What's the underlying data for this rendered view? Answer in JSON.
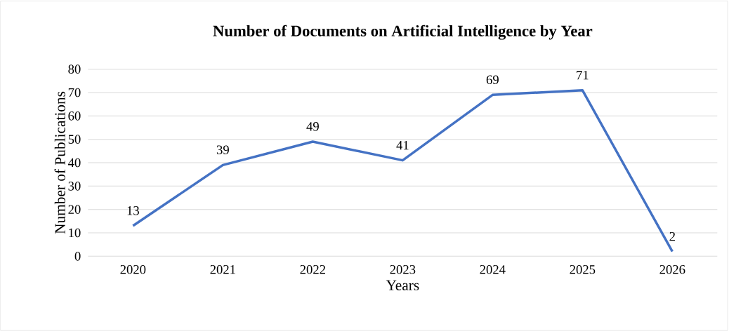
{
  "chart_data": {
    "type": "line",
    "title": "Number of Documents on Artificial Intelligence by Year",
    "xlabel": "Years",
    "ylabel": "Number of Publications",
    "categories": [
      "2020",
      "2021",
      "2022",
      "2023",
      "2024",
      "2025",
      "2026"
    ],
    "values": [
      13,
      39,
      49,
      41,
      69,
      71,
      2
    ],
    "color": "#4472c4",
    "ylim": [
      0,
      80
    ],
    "yticks": [
      0,
      10,
      20,
      30,
      40,
      50,
      60,
      70,
      80
    ],
    "grid": "y",
    "data_labels": true
  }
}
